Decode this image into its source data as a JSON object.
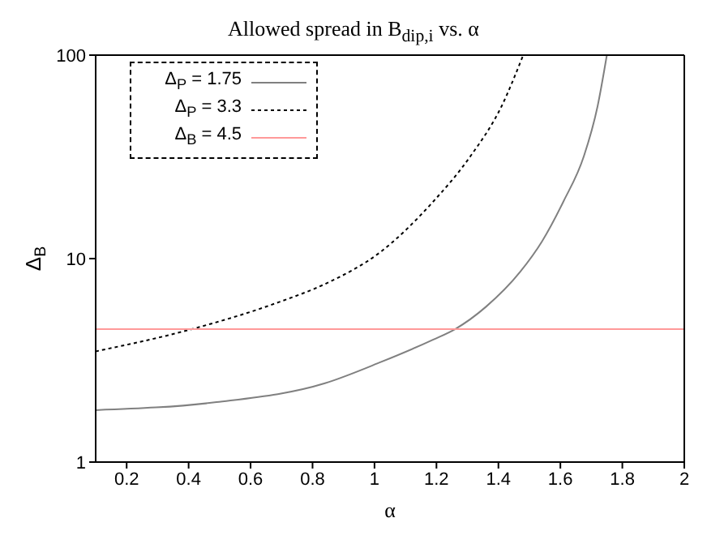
{
  "chart_data": {
    "type": "line",
    "title": "Allowed spread in B$_{dip,i}$ vs. α",
    "xlabel": "α",
    "ylabel": "Δ$_{B}$",
    "log": "y",
    "legend": "top left",
    "marker": "none",
    "xlim": [
      0.1,
      2
    ],
    "xticks": [
      0.2,
      0.4,
      0.6,
      0.8,
      1,
      1.2,
      1.4,
      1.6,
      1.8,
      2
    ],
    "ylim": [
      1,
      100
    ],
    "yticks": [
      1,
      10,
      100
    ],
    "series": [
      {
        "name": "Δ$_{P}$ = 1.75",
        "color": "#808080",
        "line_style": "solid",
        "x": [
          0.1,
          0.49,
          0.84,
          1.02,
          1.19,
          1.26,
          1.36,
          1.47,
          1.54,
          1.61,
          1.676,
          1.72,
          1.75
        ],
        "values": [
          1.8,
          1.97,
          2.44,
          3.1,
          4.0,
          4.5,
          5.8,
          8.6,
          12.1,
          19.1,
          31.9,
          56,
          100
        ]
      },
      {
        "name": "Δ$_{P}$ = 3.3",
        "color": "#000000",
        "line_style": "dotted",
        "x": [
          0.1,
          0.41,
          0.69,
          0.84,
          1.02,
          1.19,
          1.31,
          1.41,
          1.48
        ],
        "values": [
          3.5,
          4.5,
          6.1,
          7.5,
          10.8,
          19.1,
          31.9,
          56,
          100
        ]
      },
      {
        "name": "Δ$_{B}$ = 4.5",
        "color": "#ff9999",
        "line_style": "solid",
        "x": [
          0.1,
          2
        ],
        "values": [
          4.5,
          4.5
        ]
      }
    ]
  }
}
